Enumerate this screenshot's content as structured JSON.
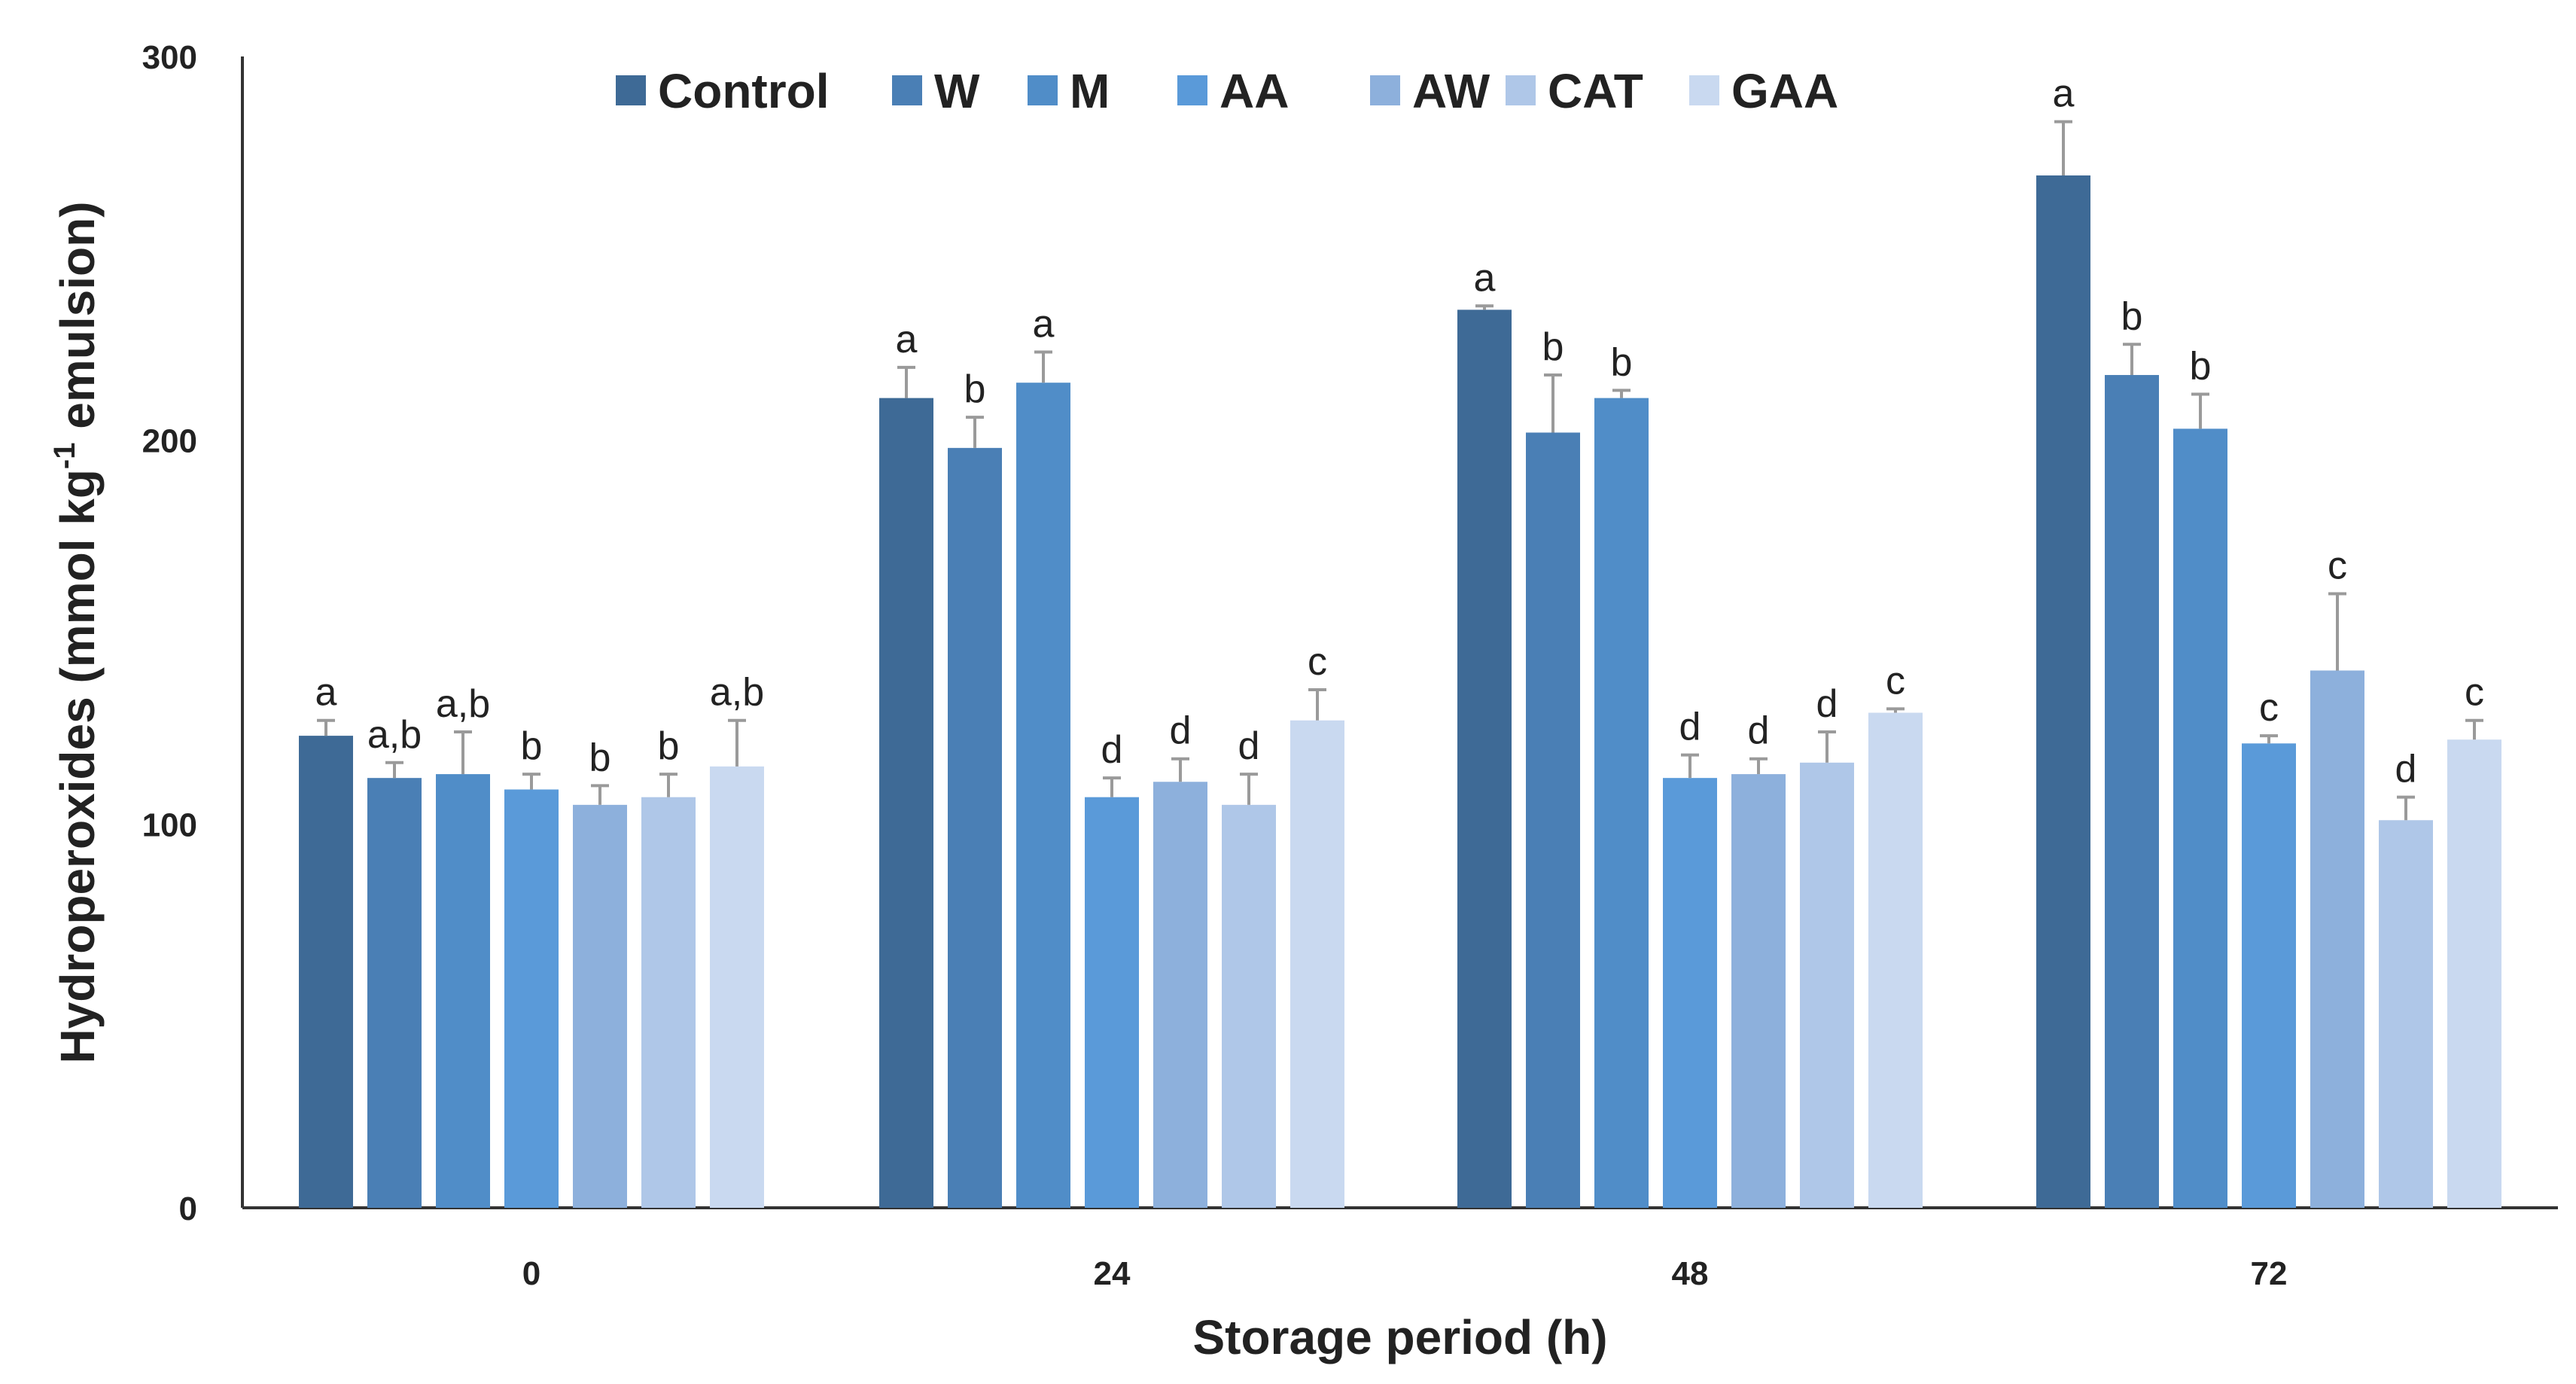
{
  "chart_data": {
    "type": "bar",
    "title": "",
    "xlabel": "Storage period (h)",
    "ylabel_main": "Hydroperoxides (mmol kg",
    "ylabel_sup": "-1",
    "ylabel_tail": " emulsion)",
    "ylim": [
      0,
      300
    ],
    "yticks": [
      "0",
      "100",
      "200",
      "300"
    ],
    "grid": false,
    "legend_position": "top-center",
    "categories": [
      "0",
      "24",
      "48",
      "72"
    ],
    "series": [
      {
        "name": "Control",
        "color": "#3e6a96",
        "values": [
          123,
          211,
          234,
          269
        ],
        "errors": [
          4,
          8,
          1,
          14
        ],
        "letters": [
          "a",
          "a",
          "a",
          "a"
        ]
      },
      {
        "name": "W",
        "color": "#4a7fb5",
        "values": [
          112,
          198,
          202,
          217
        ],
        "errors": [
          4,
          8,
          15,
          8
        ],
        "letters": [
          "a,b",
          "b",
          "b",
          "b"
        ]
      },
      {
        "name": "M",
        "color": "#508dc8",
        "values": [
          113,
          215,
          211,
          203
        ],
        "errors": [
          11,
          8,
          2,
          9
        ],
        "letters": [
          "a,b",
          "a",
          "b",
          "b"
        ]
      },
      {
        "name": "AA",
        "color": "#5a9ad9",
        "values": [
          109,
          107,
          112,
          121
        ],
        "errors": [
          4,
          5,
          6,
          2
        ],
        "letters": [
          "b",
          "d",
          "d",
          "c"
        ]
      },
      {
        "name": "AW",
        "color": "#8db0dc",
        "values": [
          105,
          111,
          113,
          140
        ],
        "errors": [
          5,
          6,
          4,
          20
        ],
        "letters": [
          "b",
          "d",
          "d",
          "c"
        ]
      },
      {
        "name": "CAT",
        "color": "#afc7e8",
        "values": [
          107,
          105,
          116,
          101
        ],
        "errors": [
          6,
          8,
          8,
          6
        ],
        "letters": [
          "b",
          "d",
          "d",
          "d"
        ]
      },
      {
        "name": "GAA",
        "color": "#c9d9f0",
        "values": [
          115,
          127,
          129,
          122
        ],
        "errors": [
          12,
          8,
          1,
          5
        ],
        "letters": [
          "a,b",
          "c",
          "c",
          "c"
        ]
      }
    ]
  }
}
